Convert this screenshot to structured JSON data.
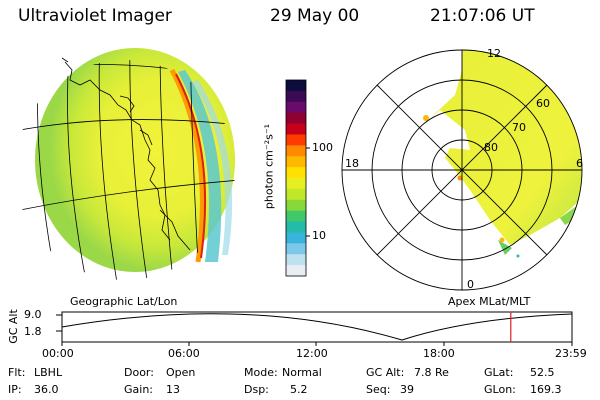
{
  "header": {
    "instrument": "Ultraviolet Imager",
    "date": "29 May 00",
    "time": "21:07:06 UT"
  },
  "colorbar": {
    "unit_label": "photon cm⁻²s⁻¹",
    "ticks": [
      "100",
      "10"
    ],
    "colors": [
      "#0d0d3d",
      "#3a0a55",
      "#6a0a6a",
      "#900030",
      "#c8001a",
      "#ff3c00",
      "#ff8a00",
      "#ffb800",
      "#ffe000",
      "#e7ef22",
      "#c0e82a",
      "#88d83a",
      "#40c86a",
      "#22bca8",
      "#38b4dc",
      "#7cc8e8",
      "#bfe0ee",
      "#e8eef2"
    ]
  },
  "left_panel": {
    "caption": "Geographic Lat/Lon"
  },
  "right_panel": {
    "caption": "Apex MLat/MLT",
    "mlt_labels": [
      "12",
      "18",
      "6",
      "0"
    ],
    "lat_labels": [
      "60",
      "70",
      "80"
    ]
  },
  "timeline": {
    "axis_label": "GC Alt",
    "y_ticks": [
      "9.0",
      "1.8"
    ],
    "x_ticks": [
      "00:00",
      "06:00",
      "12:00",
      "18:00",
      "23:59"
    ],
    "marker_fraction": 0.88
  },
  "status": {
    "filter_label": "Flt:",
    "filter_value": "LBHL",
    "door_label": "Door:",
    "door_value": "Open",
    "mode_label": "Mode:",
    "mode_value": "Normal",
    "gcalt_label": "GC Alt:",
    "gcalt_value": "7.8 Re",
    "glat_label": "GLat:",
    "glat_value": "52.5",
    "ip_label": "IP:",
    "ip_value": "36.0",
    "gain_label": "Gain:",
    "gain_value": "13",
    "dsp_label": "Dsp:",
    "dsp_value": "5.2",
    "seq_label": "Seq:",
    "seq_value": "39",
    "glon_label": "GLon:",
    "glon_value": "169.3"
  }
}
